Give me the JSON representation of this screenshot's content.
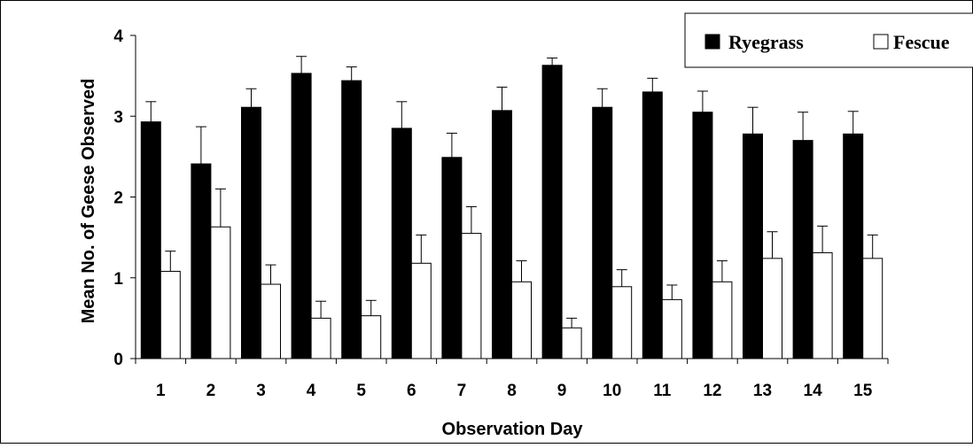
{
  "chart_data": {
    "type": "bar",
    "title": "",
    "xlabel": "Observation Day",
    "ylabel": "Mean No. of Geese Observed",
    "categories": [
      "1",
      "2",
      "3",
      "4",
      "5",
      "6",
      "7",
      "8",
      "9",
      "10",
      "11",
      "12",
      "13",
      "14",
      "15"
    ],
    "series": [
      {
        "name": "Ryegrass",
        "color": "#000000",
        "values": [
          2.93,
          2.41,
          3.11,
          3.53,
          3.44,
          2.85,
          2.49,
          3.07,
          3.63,
          3.11,
          3.3,
          3.05,
          2.78,
          2.7,
          2.78
        ],
        "error_upper": [
          0.25,
          0.46,
          0.23,
          0.21,
          0.17,
          0.33,
          0.3,
          0.29,
          0.09,
          0.23,
          0.17,
          0.26,
          0.33,
          0.35,
          0.28
        ]
      },
      {
        "name": "Fescue",
        "color": "#ffffff",
        "values": [
          1.08,
          1.63,
          0.92,
          0.5,
          0.53,
          1.18,
          1.55,
          0.95,
          0.38,
          0.89,
          0.73,
          0.95,
          1.24,
          1.31,
          1.24
        ],
        "error_upper": [
          0.25,
          0.47,
          0.24,
          0.21,
          0.19,
          0.35,
          0.33,
          0.26,
          0.12,
          0.21,
          0.18,
          0.26,
          0.33,
          0.33,
          0.29
        ]
      }
    ],
    "ylim": [
      0,
      4
    ],
    "yticks": [
      "0",
      "1",
      "2",
      "3",
      "4"
    ],
    "grid": false,
    "legend_position": "top-right",
    "error_bars": true
  }
}
